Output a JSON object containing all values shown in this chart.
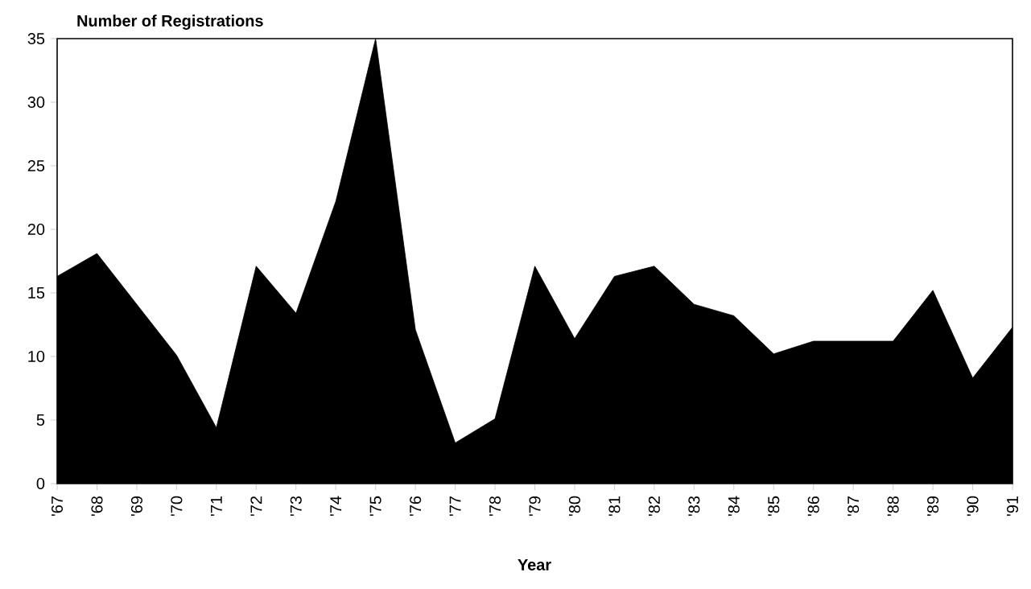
{
  "chart_data": {
    "type": "area",
    "ylabel": "Number of Registrations",
    "xlabel": "Year",
    "categories": [
      "'67",
      "'68",
      "'69",
      "'70",
      "'71",
      "'72",
      "'73",
      "'74",
      "'75",
      "'76",
      "'77",
      "'78",
      "'79",
      "'80",
      "'81",
      "'82",
      "'83",
      "'84",
      "'85",
      "'86",
      "'87",
      "'88",
      "'89",
      "'90",
      "'91"
    ],
    "values": [
      16.3,
      18.1,
      14.1,
      10.1,
      4.4,
      17.1,
      13.4,
      22.2,
      35,
      12.1,
      3.2,
      5.1,
      17.1,
      11.4,
      16.3,
      17.1,
      14.1,
      13.2,
      10.2,
      11.2,
      11.2,
      11.2,
      15.2,
      8.3,
      12.3
    ],
    "color": "#000000",
    "ylim": [
      0,
      35
    ],
    "yticks": [
      0,
      5,
      10,
      15,
      20,
      25,
      30,
      35
    ],
    "grid": false
  }
}
